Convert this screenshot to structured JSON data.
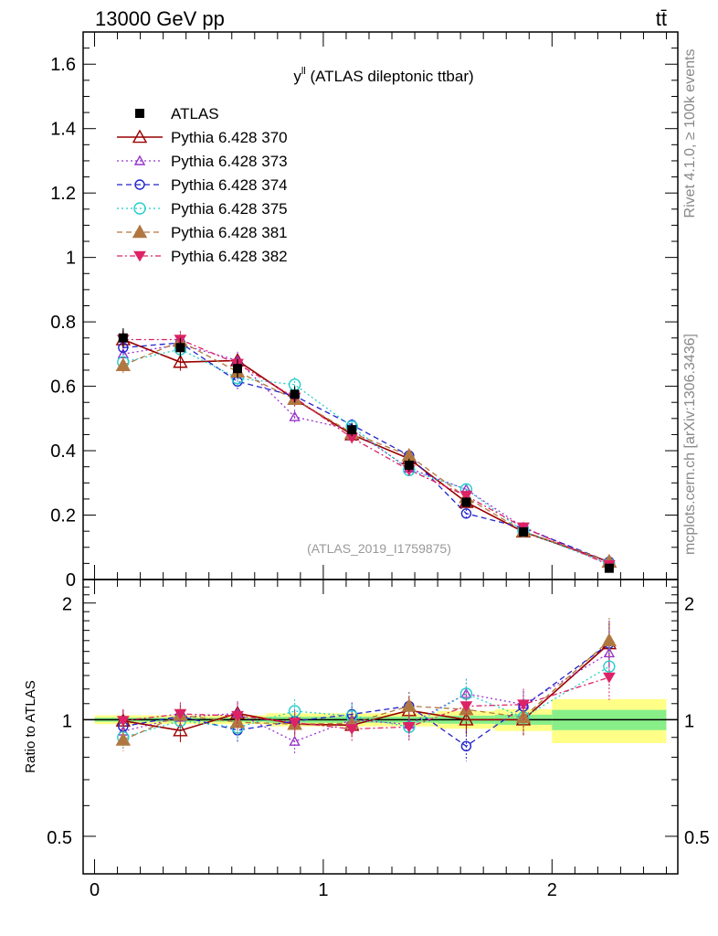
{
  "header": {
    "left": "13000 GeV pp",
    "right": "tt̄"
  },
  "side_labels": {
    "rivet": "Rivet 4.1.0, ≥ 100k events",
    "mcplots": "mcplots.cern.ch [arXiv:1306.3436]"
  },
  "chart_data": {
    "type": "scatter",
    "title_main": "y",
    "title_sup": "ll",
    "title_rest": " (ATLAS dileptonic ttbar)",
    "analysis_tag": "(ATLAS_2019_I1759875)",
    "xlim": [
      -0.05,
      2.55
    ],
    "ylim": [
      0,
      1.7
    ],
    "ratio_ylim": [
      0.4,
      2.3
    ],
    "ratio_ylabel": "Ratio to ATLAS",
    "x_ticks": [
      "0",
      "1",
      "2"
    ],
    "y_ticks": [
      "0",
      "0.2",
      "0.4",
      "0.6",
      "0.8",
      "1",
      "1.2",
      "1.4",
      "1.6"
    ],
    "ratio_ticks": [
      "0.5",
      "1",
      "2"
    ],
    "x": [
      0.125,
      0.375,
      0.625,
      0.875,
      1.125,
      1.375,
      1.625,
      1.875,
      2.25
    ],
    "bin_edges": [
      0,
      0.25,
      0.5,
      0.75,
      1.0,
      1.25,
      1.5,
      1.75,
      2.0,
      2.5
    ],
    "data": {
      "name": "ATLAS",
      "values": [
        0.75,
        0.72,
        0.655,
        0.575,
        0.465,
        0.355,
        0.24,
        0.148,
        0.035
      ],
      "errors": [
        0.03,
        0.03,
        0.03,
        0.025,
        0.02,
        0.02,
        0.015,
        0.01,
        0.004
      ],
      "band_rel": [
        0.02,
        0.02,
        0.02,
        0.03,
        0.03,
        0.03,
        0.04,
        0.05,
        0.1
      ]
    },
    "series": [
      {
        "name": "Pythia 6.428 370",
        "color": "#990000",
        "marker": "triangle-open",
        "dash": "",
        "width": 1.6,
        "values": [
          0.745,
          0.675,
          0.68,
          0.56,
          0.45,
          0.375,
          0.24,
          0.148,
          0.055
        ]
      },
      {
        "name": "Pythia 6.428 373",
        "color": "#9933cc",
        "marker": "triangle-open-small",
        "dash": "2,3",
        "width": 1.3,
        "values": [
          0.7,
          0.73,
          0.68,
          0.505,
          0.465,
          0.345,
          0.28,
          0.162,
          0.052
        ]
      },
      {
        "name": "Pythia 6.428 374",
        "color": "#2222cc",
        "marker": "circle-open",
        "dash": "6,4",
        "width": 1.3,
        "values": [
          0.72,
          0.735,
          0.615,
          0.57,
          0.48,
          0.385,
          0.205,
          0.16,
          0.055
        ]
      },
      {
        "name": "Pythia 6.428 375",
        "color": "#22cccc",
        "marker": "circle-open-large",
        "dash": "2,3",
        "width": 1.3,
        "values": [
          0.675,
          0.715,
          0.625,
          0.605,
          0.475,
          0.34,
          0.28,
          0.15,
          0.048
        ]
      },
      {
        "name": "Pythia 6.428 381",
        "color": "#b07840",
        "marker": "triangle-filled",
        "dash": "6,4",
        "width": 1.3,
        "values": [
          0.665,
          0.74,
          0.645,
          0.56,
          0.455,
          0.385,
          0.255,
          0.15,
          0.056
        ]
      },
      {
        "name": "Pythia 6.428 382",
        "color": "#dd2266",
        "marker": "triangle-down-filled",
        "dash": "6,3,2,3",
        "width": 1.3,
        "values": [
          0.745,
          0.745,
          0.67,
          0.565,
          0.44,
          0.34,
          0.26,
          0.162,
          0.045
        ]
      }
    ]
  }
}
